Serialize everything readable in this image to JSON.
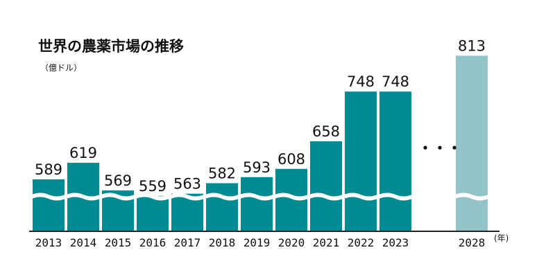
{
  "chart_data": {
    "type": "bar",
    "title": "世界の農薬市場の推移",
    "unit_label": "（億ドル）",
    "x_unit_label": "(年)",
    "ellipsis": "・・・",
    "categories": [
      "2013",
      "2014",
      "2015",
      "2016",
      "2017",
      "2018",
      "2019",
      "2020",
      "2021",
      "2022",
      "2023",
      "2028"
    ],
    "values": [
      589,
      619,
      569,
      559,
      563,
      582,
      593,
      608,
      658,
      748,
      748,
      813
    ],
    "forecast_categories": [
      "2028"
    ],
    "axis_break": true,
    "colors": {
      "actual": "#008a91",
      "forecast": "#92c4c9",
      "break_line": "#ffffff",
      "axis": "#222222"
    }
  }
}
